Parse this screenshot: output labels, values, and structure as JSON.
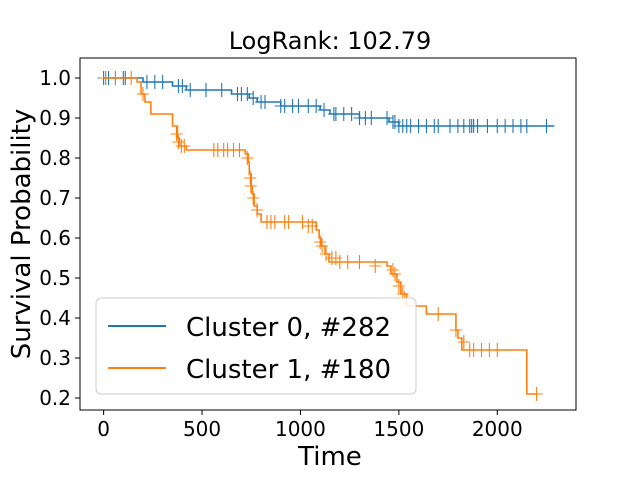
{
  "chart_data": {
    "type": "line",
    "title": "LogRank: 102.79",
    "xlabel": "Time",
    "ylabel": "Survival Probability",
    "xlim": [
      -120,
      2400
    ],
    "ylim": [
      0.17,
      1.05
    ],
    "xticks": [
      0,
      500,
      1000,
      1500,
      2000
    ],
    "yticks": [
      0.2,
      0.3,
      0.4,
      0.5,
      0.6,
      0.7,
      0.8,
      0.9,
      1.0
    ],
    "xtick_labels": [
      "0",
      "500",
      "1000",
      "1500",
      "2000"
    ],
    "ytick_labels": [
      "0.2",
      "0.3",
      "0.4",
      "0.5",
      "0.6",
      "0.7",
      "0.8",
      "0.9",
      "1.0"
    ],
    "grid": false,
    "legend_position": "lower-left",
    "series": [
      {
        "name": "Cluster 0, #282",
        "color": "#1f77b4",
        "steps": [
          [
            0,
            1.0
          ],
          [
            100,
            1.0
          ],
          [
            200,
            0.99
          ],
          [
            350,
            0.98
          ],
          [
            420,
            0.97
          ],
          [
            650,
            0.96
          ],
          [
            740,
            0.95
          ],
          [
            780,
            0.94
          ],
          [
            900,
            0.93
          ],
          [
            1100,
            0.92
          ],
          [
            1150,
            0.91
          ],
          [
            1300,
            0.9
          ],
          [
            1450,
            0.89
          ],
          [
            1500,
            0.88
          ],
          [
            2290,
            0.88
          ]
        ],
        "censored": [
          [
            0,
            1.0
          ],
          [
            10,
            1.0
          ],
          [
            25,
            1.0
          ],
          [
            60,
            1.0
          ],
          [
            100,
            1.0
          ],
          [
            110,
            1.0
          ],
          [
            220,
            0.99
          ],
          [
            260,
            0.99
          ],
          [
            300,
            0.99
          ],
          [
            380,
            0.98
          ],
          [
            400,
            0.98
          ],
          [
            440,
            0.97
          ],
          [
            520,
            0.97
          ],
          [
            600,
            0.97
          ],
          [
            680,
            0.96
          ],
          [
            700,
            0.96
          ],
          [
            730,
            0.96
          ],
          [
            760,
            0.95
          ],
          [
            800,
            0.94
          ],
          [
            820,
            0.94
          ],
          [
            900,
            0.93
          ],
          [
            920,
            0.93
          ],
          [
            960,
            0.93
          ],
          [
            990,
            0.93
          ],
          [
            1040,
            0.93
          ],
          [
            1080,
            0.93
          ],
          [
            1120,
            0.92
          ],
          [
            1170,
            0.91
          ],
          [
            1180,
            0.91
          ],
          [
            1220,
            0.91
          ],
          [
            1260,
            0.91
          ],
          [
            1300,
            0.9
          ],
          [
            1330,
            0.9
          ],
          [
            1360,
            0.9
          ],
          [
            1440,
            0.9
          ],
          [
            1470,
            0.89
          ],
          [
            1480,
            0.89
          ],
          [
            1500,
            0.88
          ],
          [
            1520,
            0.88
          ],
          [
            1540,
            0.88
          ],
          [
            1560,
            0.88
          ],
          [
            1600,
            0.88
          ],
          [
            1640,
            0.88
          ],
          [
            1680,
            0.88
          ],
          [
            1700,
            0.88
          ],
          [
            1760,
            0.88
          ],
          [
            1800,
            0.88
          ],
          [
            1830,
            0.88
          ],
          [
            1860,
            0.88
          ],
          [
            1870,
            0.88
          ],
          [
            1880,
            0.88
          ],
          [
            1900,
            0.88
          ],
          [
            1950,
            0.88
          ],
          [
            2000,
            0.88
          ],
          [
            2040,
            0.88
          ],
          [
            2080,
            0.88
          ],
          [
            2120,
            0.88
          ],
          [
            2150,
            0.88
          ],
          [
            2250,
            0.88
          ]
        ]
      },
      {
        "name": "Cluster 1, #180",
        "color": "#ff7f0e",
        "steps": [
          [
            0,
            1.0
          ],
          [
            170,
            0.99
          ],
          [
            190,
            0.96
          ],
          [
            210,
            0.94
          ],
          [
            240,
            0.91
          ],
          [
            350,
            0.88
          ],
          [
            375,
            0.85
          ],
          [
            385,
            0.83
          ],
          [
            420,
            0.82
          ],
          [
            720,
            0.81
          ],
          [
            735,
            0.79
          ],
          [
            740,
            0.76
          ],
          [
            750,
            0.73
          ],
          [
            755,
            0.71
          ],
          [
            765,
            0.68
          ],
          [
            780,
            0.66
          ],
          [
            800,
            0.64
          ],
          [
            1080,
            0.62
          ],
          [
            1095,
            0.6
          ],
          [
            1105,
            0.58
          ],
          [
            1125,
            0.56
          ],
          [
            1145,
            0.54
          ],
          [
            1440,
            0.53
          ],
          [
            1460,
            0.51
          ],
          [
            1490,
            0.49
          ],
          [
            1510,
            0.46
          ],
          [
            1540,
            0.43
          ],
          [
            1640,
            0.41
          ],
          [
            1790,
            0.37
          ],
          [
            1800,
            0.35
          ],
          [
            1820,
            0.32
          ],
          [
            2150,
            0.21
          ],
          [
            2200,
            0.21
          ]
        ],
        "censored": [
          [
            10,
            1.0
          ],
          [
            60,
            1.0
          ],
          [
            140,
            1.0
          ],
          [
            200,
            0.96
          ],
          [
            370,
            0.86
          ],
          [
            380,
            0.84
          ],
          [
            395,
            0.83
          ],
          [
            410,
            0.83
          ],
          [
            560,
            0.82
          ],
          [
            580,
            0.82
          ],
          [
            610,
            0.82
          ],
          [
            630,
            0.82
          ],
          [
            660,
            0.82
          ],
          [
            690,
            0.82
          ],
          [
            730,
            0.8
          ],
          [
            745,
            0.75
          ],
          [
            748,
            0.73
          ],
          [
            760,
            0.7
          ],
          [
            780,
            0.67
          ],
          [
            830,
            0.64
          ],
          [
            850,
            0.64
          ],
          [
            870,
            0.64
          ],
          [
            920,
            0.64
          ],
          [
            940,
            0.64
          ],
          [
            1010,
            0.64
          ],
          [
            1040,
            0.63
          ],
          [
            1060,
            0.63
          ],
          [
            1100,
            0.59
          ],
          [
            1110,
            0.58
          ],
          [
            1130,
            0.56
          ],
          [
            1160,
            0.55
          ],
          [
            1180,
            0.55
          ],
          [
            1200,
            0.54
          ],
          [
            1240,
            0.54
          ],
          [
            1300,
            0.54
          ],
          [
            1380,
            0.53
          ],
          [
            1470,
            0.52
          ],
          [
            1480,
            0.51
          ],
          [
            1500,
            0.48
          ],
          [
            1520,
            0.46
          ],
          [
            1530,
            0.45
          ],
          [
            1700,
            0.41
          ],
          [
            1790,
            0.37
          ],
          [
            1830,
            0.34
          ],
          [
            1860,
            0.32
          ],
          [
            1880,
            0.32
          ],
          [
            1920,
            0.32
          ],
          [
            1960,
            0.32
          ],
          [
            2000,
            0.32
          ],
          [
            2200,
            0.21
          ]
        ]
      }
    ]
  }
}
